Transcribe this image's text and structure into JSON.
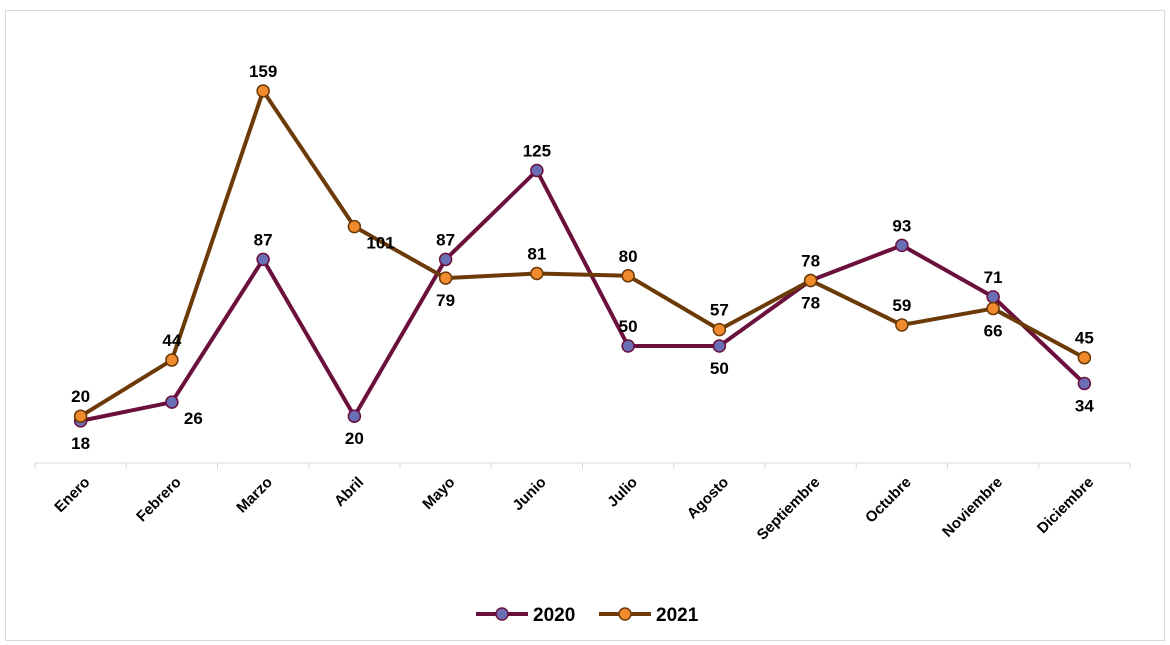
{
  "chart_data": {
    "type": "line",
    "categories": [
      "Enero",
      "Febrero",
      "Marzo",
      "Abril",
      "Mayo",
      "Junio",
      "Julio",
      "Agosto",
      "Septiembre",
      "Octubre",
      "Noviembre",
      "Diciembre"
    ],
    "series": [
      {
        "name": "2020",
        "values": [
          18,
          26,
          87,
          20,
          87,
          125,
          50,
          50,
          78,
          93,
          71,
          34
        ],
        "line_color": "#6b0f3c",
        "marker_color": "#6a6fb5",
        "label_positions": [
          "below",
          "right",
          "above",
          "below",
          "above",
          "above",
          "above",
          "below",
          "below",
          "above",
          "above",
          "below"
        ]
      },
      {
        "name": "2021",
        "values": [
          20,
          44,
          159,
          101,
          79,
          81,
          80,
          57,
          78,
          59,
          66,
          45
        ],
        "line_color": "#6b3a07",
        "marker_color": "#f08a2c",
        "label_positions": [
          "above",
          "above",
          "above",
          "right",
          "below",
          "above",
          "above",
          "above",
          "above",
          "above",
          "below",
          "above"
        ]
      }
    ],
    "xlabel": "",
    "ylabel": "",
    "ylim": [
      0,
      175
    ],
    "grid": false,
    "legend": "bottom-center"
  }
}
